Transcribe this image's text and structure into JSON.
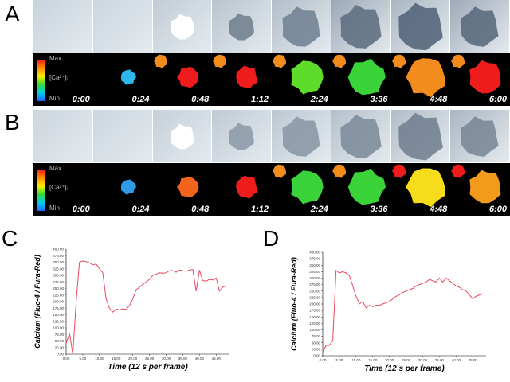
{
  "panels": {
    "A": {
      "letter": "A",
      "scale": {
        "max": "Max",
        "ion": "[Ca²⁺]ᵢ",
        "min": "Min"
      },
      "times": [
        "0:00",
        "0:24",
        "0:48",
        "1:12",
        "2:24",
        "3:36",
        "4:48",
        "6:00"
      ],
      "cell_colors": [
        null,
        "#2fb6ea",
        "#ee1c1c",
        "#ee1c1c",
        "#5ddc2a",
        "#3ad43a",
        "#f28c1c",
        "#ee1c1c"
      ],
      "edge_colors": [
        null,
        null,
        "#f28c1c",
        "#f28c1c",
        "#f28c1c",
        "#f28c1c",
        "#f28c1c",
        "#f28c1c"
      ],
      "micro_tones": [
        "#c9d3dc",
        "#cbd6de",
        "#c2ccd6",
        "#b9c4ce",
        "#b2bdc8",
        "#9aa7b5",
        "#aab6c3",
        "#9ea9b8"
      ],
      "blob_tones": [
        null,
        null,
        "#ffffff",
        "#6f7d8c",
        "#6f7f90",
        "#5a6b7e",
        "#4f6075",
        "#55667a"
      ]
    },
    "B": {
      "letter": "B",
      "scale": {
        "max": "Max",
        "ion": "[Ca²⁺]ᵢ",
        "min": "Min"
      },
      "times": [
        "0:00",
        "0:24",
        "0:48",
        "1:12",
        "2:24",
        "3:36",
        "4:48",
        "6:00"
      ],
      "cell_colors": [
        null,
        "#2f9be8",
        "#f2641c",
        "#ee1c1c",
        "#3ad43a",
        "#3ad43a",
        "#f7dc1c",
        "#f29a1c"
      ],
      "edge_colors": [
        null,
        null,
        null,
        null,
        "#f28c1c",
        "#f28c1c",
        "#ee1c1c",
        "#ee1c1c"
      ],
      "micro_tones": [
        "#ccd5dd",
        "#ccd6de",
        "#c6d0d9",
        "#c0cad4",
        "#bcc7d1",
        "#b5c0cb",
        "#b1bcc7",
        "#aab5c1"
      ],
      "blob_tones": [
        null,
        null,
        "#ffffff",
        "#8b98a6",
        "#8695a4",
        "#7a8999",
        "#6d7d8e",
        "#768595"
      ]
    },
    "C": {
      "letter": "C",
      "chart_data": {
        "type": "line",
        "xlabel": "Time (12 s per frame)",
        "ylabel": "Calcium (Fluo-4 / Fura-Red)",
        "xlim": [
          0,
          49
        ],
        "ylim": [
          0,
          400
        ],
        "xticks": [
          "0.00",
          "5.00",
          "10.00",
          "15.00",
          "20.00",
          "25.00",
          "30.00",
          "35.00",
          "40.00",
          "45.00"
        ],
        "yticks": [
          "0.00",
          "25.00",
          "50.00",
          "75.00",
          "100.00",
          "125.00",
          "150.00",
          "175.00",
          "200.00",
          "225.00",
          "250.00",
          "275.00",
          "300.00",
          "325.00",
          "350.00",
          "375.00",
          "400.00"
        ],
        "color": "#e84a5f",
        "x": [
          0,
          1,
          2,
          3,
          4,
          5,
          6,
          7,
          8,
          9,
          10,
          11,
          12,
          13,
          14,
          15,
          16,
          17,
          18,
          19,
          20,
          21,
          22,
          23,
          24,
          25,
          26,
          27,
          28,
          29,
          30,
          31,
          32,
          33,
          34,
          35,
          36,
          37,
          38,
          39,
          40,
          41,
          42,
          43,
          44,
          45,
          46,
          47,
          48
        ],
        "y": [
          40,
          80,
          0,
          200,
          350,
          355,
          352,
          348,
          340,
          343,
          325,
          310,
          210,
          175,
          160,
          172,
          168,
          172,
          170,
          185,
          210,
          245,
          255,
          265,
          275,
          285,
          300,
          305,
          310,
          308,
          310,
          318,
          318,
          312,
          320,
          318,
          315,
          320,
          322,
          240,
          320,
          280,
          278,
          285,
          282,
          290,
          240,
          255,
          260
        ]
      }
    },
    "D": {
      "letter": "D",
      "chart_data": {
        "type": "line",
        "xlabel": "Time (12 s per frame)",
        "ylabel": "Calcium (Fluo-4 / Fura-Red)",
        "xlim": [
          0,
          49
        ],
        "ylim": [
          0,
          400
        ],
        "xticks": [
          "0.00",
          "5.00",
          "10.00",
          "15.00",
          "20.00",
          "25.00",
          "30.00",
          "35.00",
          "40.00",
          "45.00"
        ],
        "yticks": [
          "0.00",
          "25.00",
          "50.00",
          "75.00",
          "100.00",
          "125.00",
          "150.00",
          "175.00",
          "200.00",
          "225.00",
          "250.00",
          "275.00",
          "300.00",
          "325.00",
          "350.00",
          "375.00",
          "400.00"
        ],
        "color": "#e84a5f",
        "x": [
          0,
          1,
          2,
          3,
          4,
          5,
          6,
          7,
          8,
          9,
          10,
          11,
          12,
          13,
          14,
          15,
          16,
          17,
          18,
          19,
          20,
          21,
          22,
          23,
          24,
          25,
          26,
          27,
          28,
          29,
          30,
          31,
          32,
          33,
          34,
          35,
          36,
          37,
          38,
          39,
          40,
          41,
          42,
          43,
          44,
          45,
          46,
          47,
          48
        ],
        "y": [
          15,
          40,
          40,
          60,
          330,
          320,
          325,
          320,
          310,
          270,
          230,
          200,
          210,
          185,
          195,
          190,
          195,
          195,
          200,
          205,
          210,
          220,
          230,
          235,
          245,
          250,
          255,
          260,
          270,
          275,
          280,
          285,
          295,
          290,
          285,
          300,
          285,
          300,
          290,
          280,
          270,
          265,
          255,
          250,
          235,
          220,
          230,
          235,
          240
        ]
      }
    }
  }
}
